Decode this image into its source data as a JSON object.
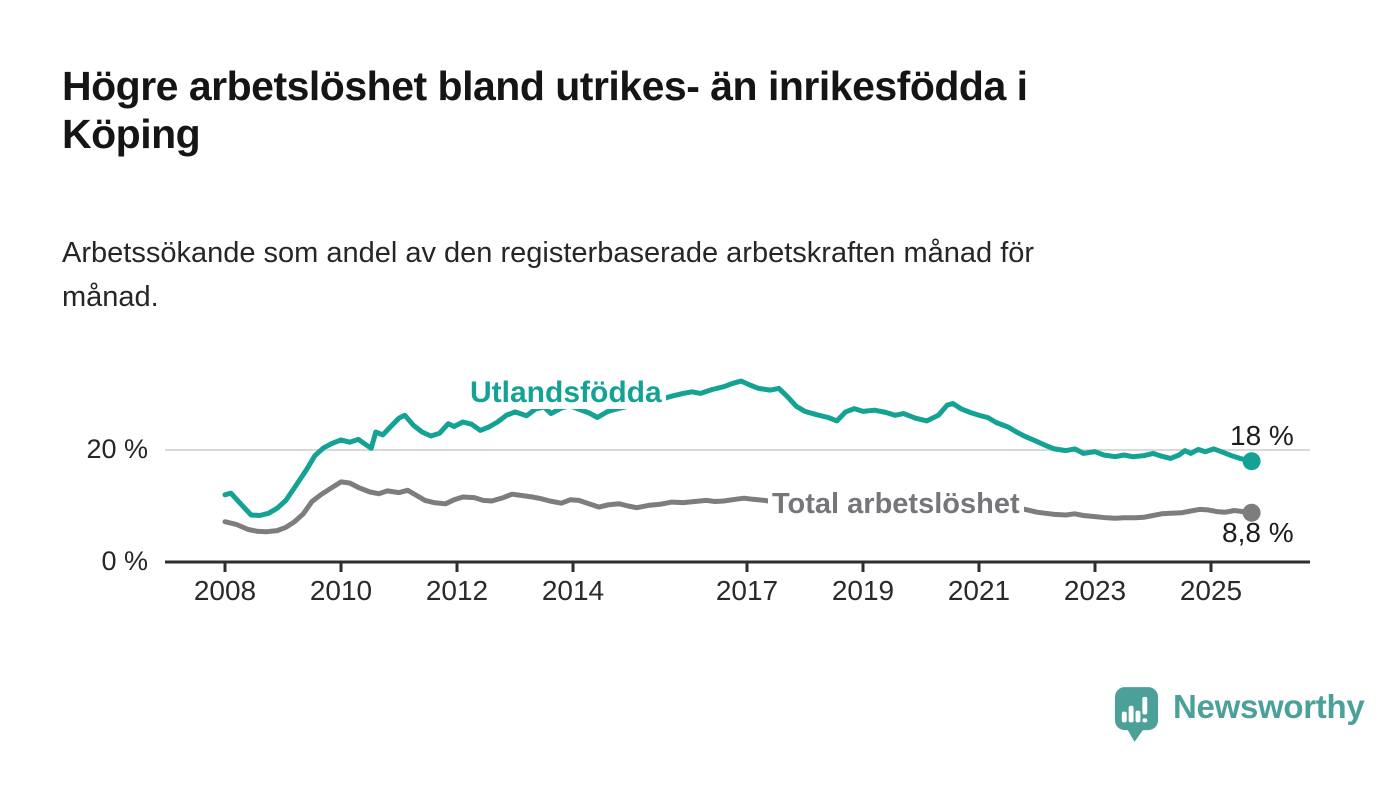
{
  "header": {
    "title": "Högre arbetslöshet bland utrikes- än inrikesfödda i\nKöping",
    "subtitle": "Arbetssökande som andel av den registerbaserade arbetskraften månad för\nmånad."
  },
  "chart_data": {
    "type": "line",
    "unit": "%",
    "title": "Högre arbetslöshet bland utrikes- än inrikesfödda i Köping",
    "xlabel": "",
    "ylabel": "Arbetssökande som andel av den registerbaserade arbetskraften",
    "x_axis": {
      "origin_year": 2008,
      "ticks": [
        2008,
        2010,
        2012,
        2014,
        2017,
        2019,
        2021,
        2023,
        2025
      ]
    },
    "y_axis": {
      "range": [
        0,
        36
      ],
      "ticks": [
        {
          "value": 0,
          "label": "0 %"
        },
        {
          "value": 20,
          "label": "20 %"
        }
      ],
      "grid": "gridline-at-20-only"
    },
    "legend_position": "inline-annotations",
    "series": [
      {
        "name": "Utlandsfödda",
        "color": "#13a294",
        "end_label": "18 %",
        "end_value": 18,
        "points": [
          [
            2008.0,
            12.0
          ],
          [
            2008.1,
            12.3
          ],
          [
            2008.25,
            10.6
          ],
          [
            2008.45,
            8.4
          ],
          [
            2008.6,
            8.3
          ],
          [
            2008.75,
            8.7
          ],
          [
            2008.9,
            9.6
          ],
          [
            2009.05,
            11.0
          ],
          [
            2009.2,
            13.3
          ],
          [
            2009.4,
            16.4
          ],
          [
            2009.55,
            19.0
          ],
          [
            2009.7,
            20.4
          ],
          [
            2009.85,
            21.2
          ],
          [
            2010.0,
            21.8
          ],
          [
            2010.15,
            21.4
          ],
          [
            2010.3,
            21.9
          ],
          [
            2010.45,
            20.8
          ],
          [
            2010.52,
            20.3
          ],
          [
            2010.6,
            23.2
          ],
          [
            2010.72,
            22.7
          ],
          [
            2010.85,
            24.1
          ],
          [
            2011.0,
            25.7
          ],
          [
            2011.1,
            26.2
          ],
          [
            2011.25,
            24.4
          ],
          [
            2011.4,
            23.2
          ],
          [
            2011.55,
            22.5
          ],
          [
            2011.7,
            23.0
          ],
          [
            2011.85,
            24.7
          ],
          [
            2011.95,
            24.2
          ],
          [
            2012.1,
            25.0
          ],
          [
            2012.25,
            24.6
          ],
          [
            2012.4,
            23.5
          ],
          [
            2012.55,
            24.1
          ],
          [
            2012.7,
            25.0
          ],
          [
            2012.85,
            26.2
          ],
          [
            2013.0,
            26.8
          ],
          [
            2013.2,
            26.1
          ],
          [
            2013.35,
            27.3
          ],
          [
            2013.5,
            27.7
          ],
          [
            2013.62,
            26.5
          ],
          [
            2013.8,
            27.5
          ],
          [
            2013.95,
            27.9
          ],
          [
            2014.1,
            27.3
          ],
          [
            2014.28,
            26.6
          ],
          [
            2014.42,
            25.8
          ],
          [
            2014.6,
            26.9
          ],
          [
            2014.78,
            27.4
          ],
          [
            2014.95,
            27.8
          ],
          [
            2015.1,
            28.1
          ],
          [
            2015.3,
            28.5
          ],
          [
            2015.5,
            29.0
          ],
          [
            2015.7,
            29.6
          ],
          [
            2015.9,
            30.1
          ],
          [
            2016.05,
            30.4
          ],
          [
            2016.2,
            30.1
          ],
          [
            2016.4,
            30.8
          ],
          [
            2016.6,
            31.3
          ],
          [
            2016.75,
            31.9
          ],
          [
            2016.9,
            32.3
          ],
          [
            2017.05,
            31.6
          ],
          [
            2017.2,
            31.0
          ],
          [
            2017.4,
            30.7
          ],
          [
            2017.55,
            31.0
          ],
          [
            2017.7,
            29.5
          ],
          [
            2017.85,
            27.8
          ],
          [
            2018.0,
            26.9
          ],
          [
            2018.2,
            26.3
          ],
          [
            2018.4,
            25.8
          ],
          [
            2018.55,
            25.2
          ],
          [
            2018.7,
            26.8
          ],
          [
            2018.85,
            27.4
          ],
          [
            2019.0,
            26.9
          ],
          [
            2019.2,
            27.1
          ],
          [
            2019.4,
            26.7
          ],
          [
            2019.55,
            26.2
          ],
          [
            2019.7,
            26.5
          ],
          [
            2019.9,
            25.7
          ],
          [
            2020.1,
            25.2
          ],
          [
            2020.3,
            26.2
          ],
          [
            2020.45,
            28.0
          ],
          [
            2020.55,
            28.3
          ],
          [
            2020.7,
            27.3
          ],
          [
            2020.85,
            26.7
          ],
          [
            2021.0,
            26.2
          ],
          [
            2021.15,
            25.8
          ],
          [
            2021.3,
            24.9
          ],
          [
            2021.5,
            24.1
          ],
          [
            2021.65,
            23.2
          ],
          [
            2021.8,
            22.4
          ],
          [
            2022.0,
            21.5
          ],
          [
            2022.15,
            20.8
          ],
          [
            2022.3,
            20.2
          ],
          [
            2022.5,
            19.9
          ],
          [
            2022.65,
            20.2
          ],
          [
            2022.8,
            19.4
          ],
          [
            2023.0,
            19.7
          ],
          [
            2023.15,
            19.1
          ],
          [
            2023.35,
            18.8
          ],
          [
            2023.5,
            19.1
          ],
          [
            2023.65,
            18.8
          ],
          [
            2023.85,
            19.0
          ],
          [
            2024.0,
            19.4
          ],
          [
            2024.15,
            18.9
          ],
          [
            2024.3,
            18.5
          ],
          [
            2024.45,
            19.1
          ],
          [
            2024.55,
            19.9
          ],
          [
            2024.65,
            19.4
          ],
          [
            2024.78,
            20.1
          ],
          [
            2024.9,
            19.7
          ],
          [
            2025.05,
            20.2
          ],
          [
            2025.2,
            19.6
          ],
          [
            2025.35,
            19.0
          ],
          [
            2025.5,
            18.5
          ],
          [
            2025.7,
            18.0
          ]
        ]
      },
      {
        "name": "Total arbetslöshet",
        "color": "#7d7d7d",
        "label_color": "#76767a",
        "end_label": "8,8 %",
        "end_value": 8.8,
        "points": [
          [
            2008.0,
            7.2
          ],
          [
            2008.2,
            6.7
          ],
          [
            2008.4,
            5.8
          ],
          [
            2008.55,
            5.5
          ],
          [
            2008.7,
            5.4
          ],
          [
            2008.9,
            5.6
          ],
          [
            2009.05,
            6.2
          ],
          [
            2009.2,
            7.2
          ],
          [
            2009.35,
            8.6
          ],
          [
            2009.5,
            10.8
          ],
          [
            2009.65,
            12.0
          ],
          [
            2009.8,
            13.0
          ],
          [
            2010.0,
            14.3
          ],
          [
            2010.15,
            14.1
          ],
          [
            2010.3,
            13.3
          ],
          [
            2010.5,
            12.5
          ],
          [
            2010.65,
            12.2
          ],
          [
            2010.8,
            12.7
          ],
          [
            2011.0,
            12.4
          ],
          [
            2011.15,
            12.8
          ],
          [
            2011.3,
            11.9
          ],
          [
            2011.45,
            11.0
          ],
          [
            2011.6,
            10.6
          ],
          [
            2011.8,
            10.4
          ],
          [
            2011.95,
            11.1
          ],
          [
            2012.1,
            11.6
          ],
          [
            2012.3,
            11.5
          ],
          [
            2012.45,
            11.0
          ],
          [
            2012.6,
            10.9
          ],
          [
            2012.8,
            11.5
          ],
          [
            2012.95,
            12.1
          ],
          [
            2013.1,
            11.9
          ],
          [
            2013.3,
            11.6
          ],
          [
            2013.45,
            11.3
          ],
          [
            2013.6,
            10.9
          ],
          [
            2013.8,
            10.5
          ],
          [
            2013.95,
            11.1
          ],
          [
            2014.1,
            11.0
          ],
          [
            2014.3,
            10.3
          ],
          [
            2014.45,
            9.8
          ],
          [
            2014.6,
            10.2
          ],
          [
            2014.8,
            10.4
          ],
          [
            2014.95,
            10.0
          ],
          [
            2015.1,
            9.7
          ],
          [
            2015.3,
            10.1
          ],
          [
            2015.5,
            10.3
          ],
          [
            2015.7,
            10.7
          ],
          [
            2015.9,
            10.6
          ],
          [
            2016.1,
            10.8
          ],
          [
            2016.3,
            11.0
          ],
          [
            2016.45,
            10.8
          ],
          [
            2016.6,
            10.9
          ],
          [
            2016.8,
            11.2
          ],
          [
            2016.95,
            11.4
          ],
          [
            2017.1,
            11.2
          ],
          [
            2017.3,
            11.0
          ],
          [
            2017.5,
            10.7
          ],
          [
            2017.7,
            10.3
          ],
          [
            2017.9,
            10.0
          ],
          [
            2018.1,
            9.8
          ],
          [
            2018.3,
            9.6
          ],
          [
            2018.5,
            9.4
          ],
          [
            2018.7,
            9.8
          ],
          [
            2018.9,
            10.1
          ],
          [
            2019.1,
            10.2
          ],
          [
            2019.3,
            10.0
          ],
          [
            2019.5,
            10.1
          ],
          [
            2019.7,
            10.2
          ],
          [
            2019.9,
            10.0
          ],
          [
            2020.1,
            10.3
          ],
          [
            2020.3,
            10.6
          ],
          [
            2020.5,
            11.0
          ],
          [
            2020.7,
            11.2
          ],
          [
            2020.9,
            11.1
          ],
          [
            2021.1,
            10.8
          ],
          [
            2021.3,
            10.5
          ],
          [
            2021.5,
            10.0
          ],
          [
            2021.75,
            9.5
          ],
          [
            2022.0,
            8.9
          ],
          [
            2022.15,
            8.7
          ],
          [
            2022.3,
            8.5
          ],
          [
            2022.5,
            8.4
          ],
          [
            2022.65,
            8.6
          ],
          [
            2022.8,
            8.3
          ],
          [
            2023.0,
            8.1
          ],
          [
            2023.2,
            7.9
          ],
          [
            2023.35,
            7.8
          ],
          [
            2023.5,
            7.9
          ],
          [
            2023.7,
            7.9
          ],
          [
            2023.85,
            8.0
          ],
          [
            2024.0,
            8.3
          ],
          [
            2024.15,
            8.6
          ],
          [
            2024.3,
            8.7
          ],
          [
            2024.5,
            8.8
          ],
          [
            2024.65,
            9.1
          ],
          [
            2024.8,
            9.4
          ],
          [
            2024.95,
            9.3
          ],
          [
            2025.1,
            9.0
          ],
          [
            2025.25,
            8.9
          ],
          [
            2025.4,
            9.2
          ],
          [
            2025.55,
            9.0
          ],
          [
            2025.7,
            8.8
          ]
        ]
      }
    ]
  },
  "branding": {
    "wordmark": "Newsworthy",
    "brand_color": "#4BA19A",
    "logo_icon": "bar-chart-speech-bubble"
  }
}
